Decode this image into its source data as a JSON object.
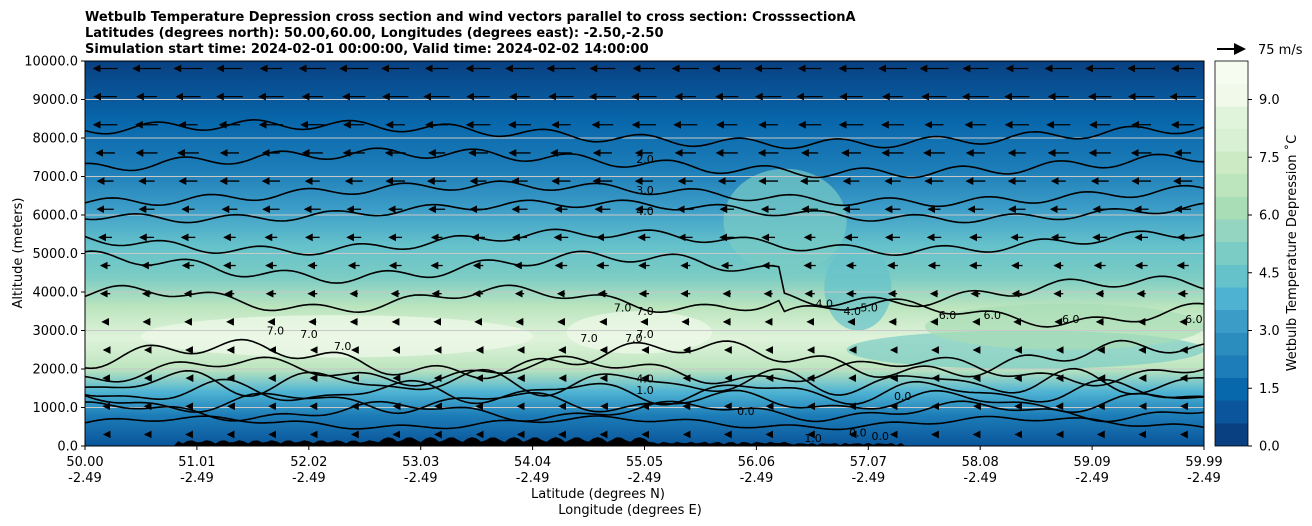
{
  "chart_data": {
    "type": "contour",
    "title_lines": [
      "Wetbulb Temperature Depression cross section and wind vectors parallel to cross section: CrosssectionA",
      "Latitudes (degrees north): 50.00,60.00, Longitudes (degrees east): -2.50,-2.50",
      "Simulation start time: 2024-02-01 00:00:00, Valid time: 2024-02-02 14:00:00"
    ],
    "ylabel": "Altitude (meters)",
    "xlabel": "Latitude (degrees N)",
    "xlabel2": "Longitude (degrees E)",
    "ylim": [
      0,
      10000
    ],
    "yticks": [
      "0.0",
      "1000.0",
      "2000.0",
      "3000.0",
      "4000.0",
      "5000.0",
      "6000.0",
      "7000.0",
      "8000.0",
      "9000.0",
      "10000.0"
    ],
    "xlim": [
      50.0,
      59.99
    ],
    "xticks": [
      {
        "lat": "50.00",
        "lon": "-2.49"
      },
      {
        "lat": "51.01",
        "lon": "-2.49"
      },
      {
        "lat": "52.02",
        "lon": "-2.49"
      },
      {
        "lat": "53.03",
        "lon": "-2.49"
      },
      {
        "lat": "54.04",
        "lon": "-2.49"
      },
      {
        "lat": "55.05",
        "lon": "-2.49"
      },
      {
        "lat": "56.06",
        "lon": "-2.49"
      },
      {
        "lat": "57.07",
        "lon": "-2.49"
      },
      {
        "lat": "58.08",
        "lon": "-2.49"
      },
      {
        "lat": "59.09",
        "lon": "-2.49"
      },
      {
        "lat": "59.99",
        "lon": "-2.49"
      }
    ],
    "grid": "horizontal",
    "colorbar": {
      "label": "Wetbulb Temperature Depression ˚C",
      "range": [
        0,
        10
      ],
      "ticks": [
        "0.0",
        "1.5",
        "3.0",
        "4.5",
        "6.0",
        "7.5",
        "9.0"
      ],
      "colors": [
        "#084081",
        "#0a559b",
        "#0868ac",
        "#1d7db8",
        "#2b8cbe",
        "#3b9cc7",
        "#4eb3d3",
        "#65c2cb",
        "#7bccc4",
        "#93d5c0",
        "#a8ddb5",
        "#bce5be",
        "#ccebc5",
        "#daf0d4",
        "#e0f3db",
        "#f0f9ea",
        "#f7fcf0"
      ]
    },
    "quiver_key": {
      "label": "75 m/s",
      "value": 75
    },
    "contour_labels": [
      {
        "text": "2.0",
        "lat": 55.0,
        "alt": 7350
      },
      {
        "text": "3.0",
        "lat": 55.0,
        "alt": 6550
      },
      {
        "text": "4.0",
        "lat": 55.0,
        "alt": 6000
      },
      {
        "text": "7.0",
        "lat": 54.8,
        "alt": 3500
      },
      {
        "text": "7.0",
        "lat": 55.0,
        "alt": 3400
      },
      {
        "text": "7.0",
        "lat": 54.9,
        "alt": 2700
      },
      {
        "text": "7.0",
        "lat": 55.0,
        "alt": 2800
      },
      {
        "text": "7.0",
        "lat": 54.5,
        "alt": 2700
      },
      {
        "text": "7.0",
        "lat": 51.7,
        "alt": 2900
      },
      {
        "text": "7.0",
        "lat": 52.0,
        "alt": 2800
      },
      {
        "text": "7.0",
        "lat": 52.3,
        "alt": 2500
      },
      {
        "text": "4.0",
        "lat": 55.0,
        "alt": 1650
      },
      {
        "text": "1.0",
        "lat": 55.0,
        "alt": 1350
      },
      {
        "text": "0.0",
        "lat": 55.9,
        "alt": 800
      },
      {
        "text": "4.0",
        "lat": 56.6,
        "alt": 3600
      },
      {
        "text": "4.0",
        "lat": 56.85,
        "alt": 3400
      },
      {
        "text": "5.0",
        "lat": 57.0,
        "alt": 3500
      },
      {
        "text": "6.0",
        "lat": 57.7,
        "alt": 3300
      },
      {
        "text": "6.0",
        "lat": 58.1,
        "alt": 3300
      },
      {
        "text": "6.0",
        "lat": 58.8,
        "alt": 3200
      },
      {
        "text": "6.0",
        "lat": 59.9,
        "alt": 3200
      },
      {
        "text": "0.0",
        "lat": 57.3,
        "alt": 1200
      },
      {
        "text": "1.0",
        "lat": 56.5,
        "alt": 100
      },
      {
        "text": "0.0",
        "lat": 56.9,
        "alt": 250
      },
      {
        "text": "0.0",
        "lat": 57.1,
        "alt": 150
      }
    ],
    "field_bands": [
      {
        "alt": 0,
        "value": 1.0
      },
      {
        "alt": 800,
        "value": 2.0
      },
      {
        "alt": 1400,
        "value": 4.0
      },
      {
        "alt": 2000,
        "value": 6.5
      },
      {
        "alt": 2800,
        "value": 8.3
      },
      {
        "alt": 3600,
        "value": 7.0
      },
      {
        "alt": 4400,
        "value": 5.2
      },
      {
        "alt": 5200,
        "value": 4.2
      },
      {
        "alt": 6200,
        "value": 3.3
      },
      {
        "alt": 7200,
        "value": 2.2
      },
      {
        "alt": 8400,
        "value": 1.3
      },
      {
        "alt": 10000,
        "value": 0.5
      }
    ]
  }
}
